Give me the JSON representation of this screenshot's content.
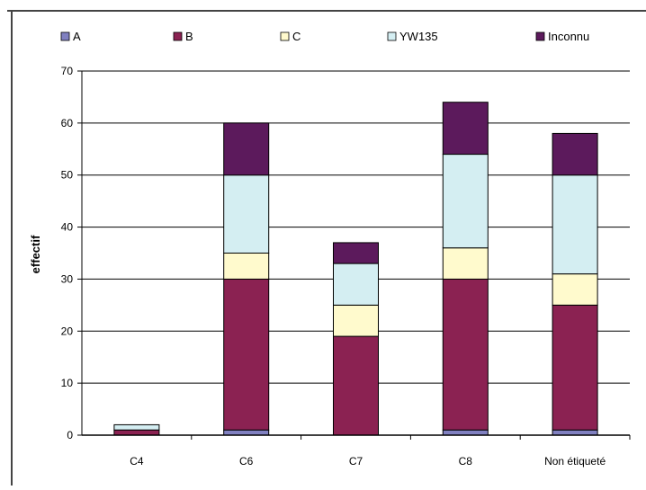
{
  "chart_data": {
    "type": "bar",
    "stacked": true,
    "ylabel": "effectif",
    "xlabel": "",
    "ylim": [
      0,
      70
    ],
    "yticks": [
      0,
      10,
      20,
      30,
      40,
      50,
      60,
      70
    ],
    "grid": true,
    "legend_position": "top",
    "categories": [
      "C4",
      "C6",
      "C7",
      "C8",
      "Non étiqueté"
    ],
    "series": [
      {
        "name": "A",
        "color": "#8080c0",
        "values": [
          0,
          1,
          0,
          1,
          1
        ]
      },
      {
        "name": "B",
        "color": "#8b2252",
        "values": [
          1,
          29,
          19,
          29,
          24
        ]
      },
      {
        "name": "C",
        "color": "#fffacd",
        "values": [
          0,
          5,
          6,
          6,
          6
        ]
      },
      {
        "name": "YW135",
        "color": "#d4eef2",
        "values": [
          1,
          15,
          8,
          18,
          19
        ]
      },
      {
        "name": "Inconnu",
        "color": "#5c1a5c",
        "values": [
          0,
          10,
          4,
          10,
          8
        ]
      }
    ]
  }
}
